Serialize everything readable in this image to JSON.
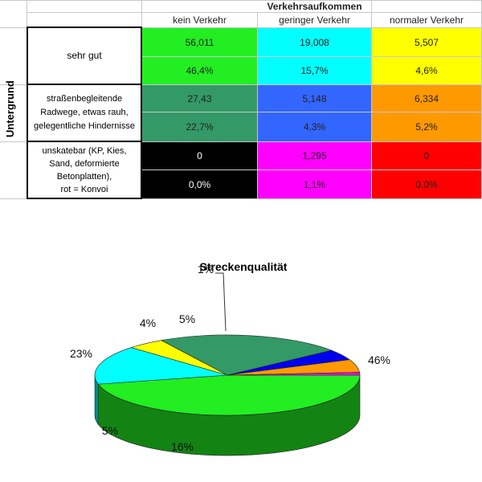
{
  "table": {
    "super_header": "Verkehrsaufkommen",
    "row_group_label": "Untergrund",
    "columns": [
      "kein Verkehr",
      "geringer Verkehr",
      "normaler Verkehr"
    ],
    "rows": [
      {
        "label": "sehr gut",
        "counts": [
          "56,011",
          "19,008",
          "5,507"
        ],
        "percents": [
          "46,4%",
          "15,7%",
          "4,6%"
        ],
        "colors": [
          "#22ee22",
          "#00ffff",
          "#ffff00"
        ]
      },
      {
        "label_lines": [
          "straßenbegleitende",
          "Radwege, etwas rauh,",
          "gelegentliche Hindernisse"
        ],
        "counts": [
          "27,43",
          "5,148",
          "6,334"
        ],
        "percents": [
          "22,7%",
          "4,3%",
          "5,2%"
        ],
        "colors": [
          "#339966",
          "#3366ff",
          "#ff9900"
        ]
      },
      {
        "label_lines": [
          "unskatebar (KP, Kies,",
          "Sand, deformierte",
          "Betonplatten),",
          "rot = Konvoi"
        ],
        "counts": [
          "0",
          "1,295",
          "0"
        ],
        "percents": [
          "0,0%",
          "1,1%",
          "0,0%"
        ],
        "colors": [
          "#000000",
          "#ff00ff",
          "#ff0000"
        ]
      }
    ]
  },
  "chart_data": {
    "type": "pie",
    "title": "Streckenqualität",
    "slices": [
      {
        "label": "46%",
        "value": 46.4,
        "color": "#22ee22"
      },
      {
        "label": "16%",
        "value": 15.7,
        "color": "#00ffff"
      },
      {
        "label": "5%",
        "value": 4.6,
        "color": "#ffff00"
      },
      {
        "label": "23%",
        "value": 22.7,
        "color": "#339966"
      },
      {
        "label": "4%",
        "value": 4.3,
        "color": "#0000ee"
      },
      {
        "label": "5%",
        "value": 5.2,
        "color": "#ff9900"
      },
      {
        "label": "1%",
        "value": 1.1,
        "color": "#ff00ff"
      }
    ]
  }
}
